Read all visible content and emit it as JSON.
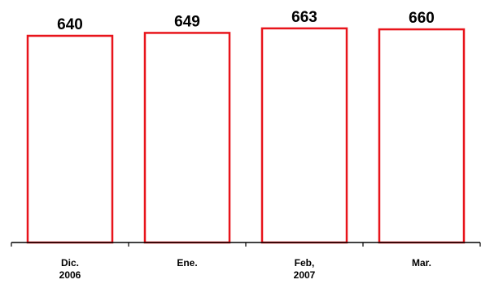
{
  "chart_data": {
    "type": "bar",
    "categories": [
      [
        "Dic.",
        "2006"
      ],
      [
        "Ene."
      ],
      [
        "Feb,",
        "2007"
      ],
      [
        "Mar."
      ]
    ],
    "values": [
      640,
      649,
      663,
      660
    ],
    "data_labels": [
      "640",
      "649",
      "663",
      "660"
    ],
    "title": "",
    "xlabel": "",
    "ylabel": "",
    "y_axis_visible": false,
    "grid": false,
    "bar_fill": "#ffffff",
    "bar_edge_color": "#e8141b"
  }
}
